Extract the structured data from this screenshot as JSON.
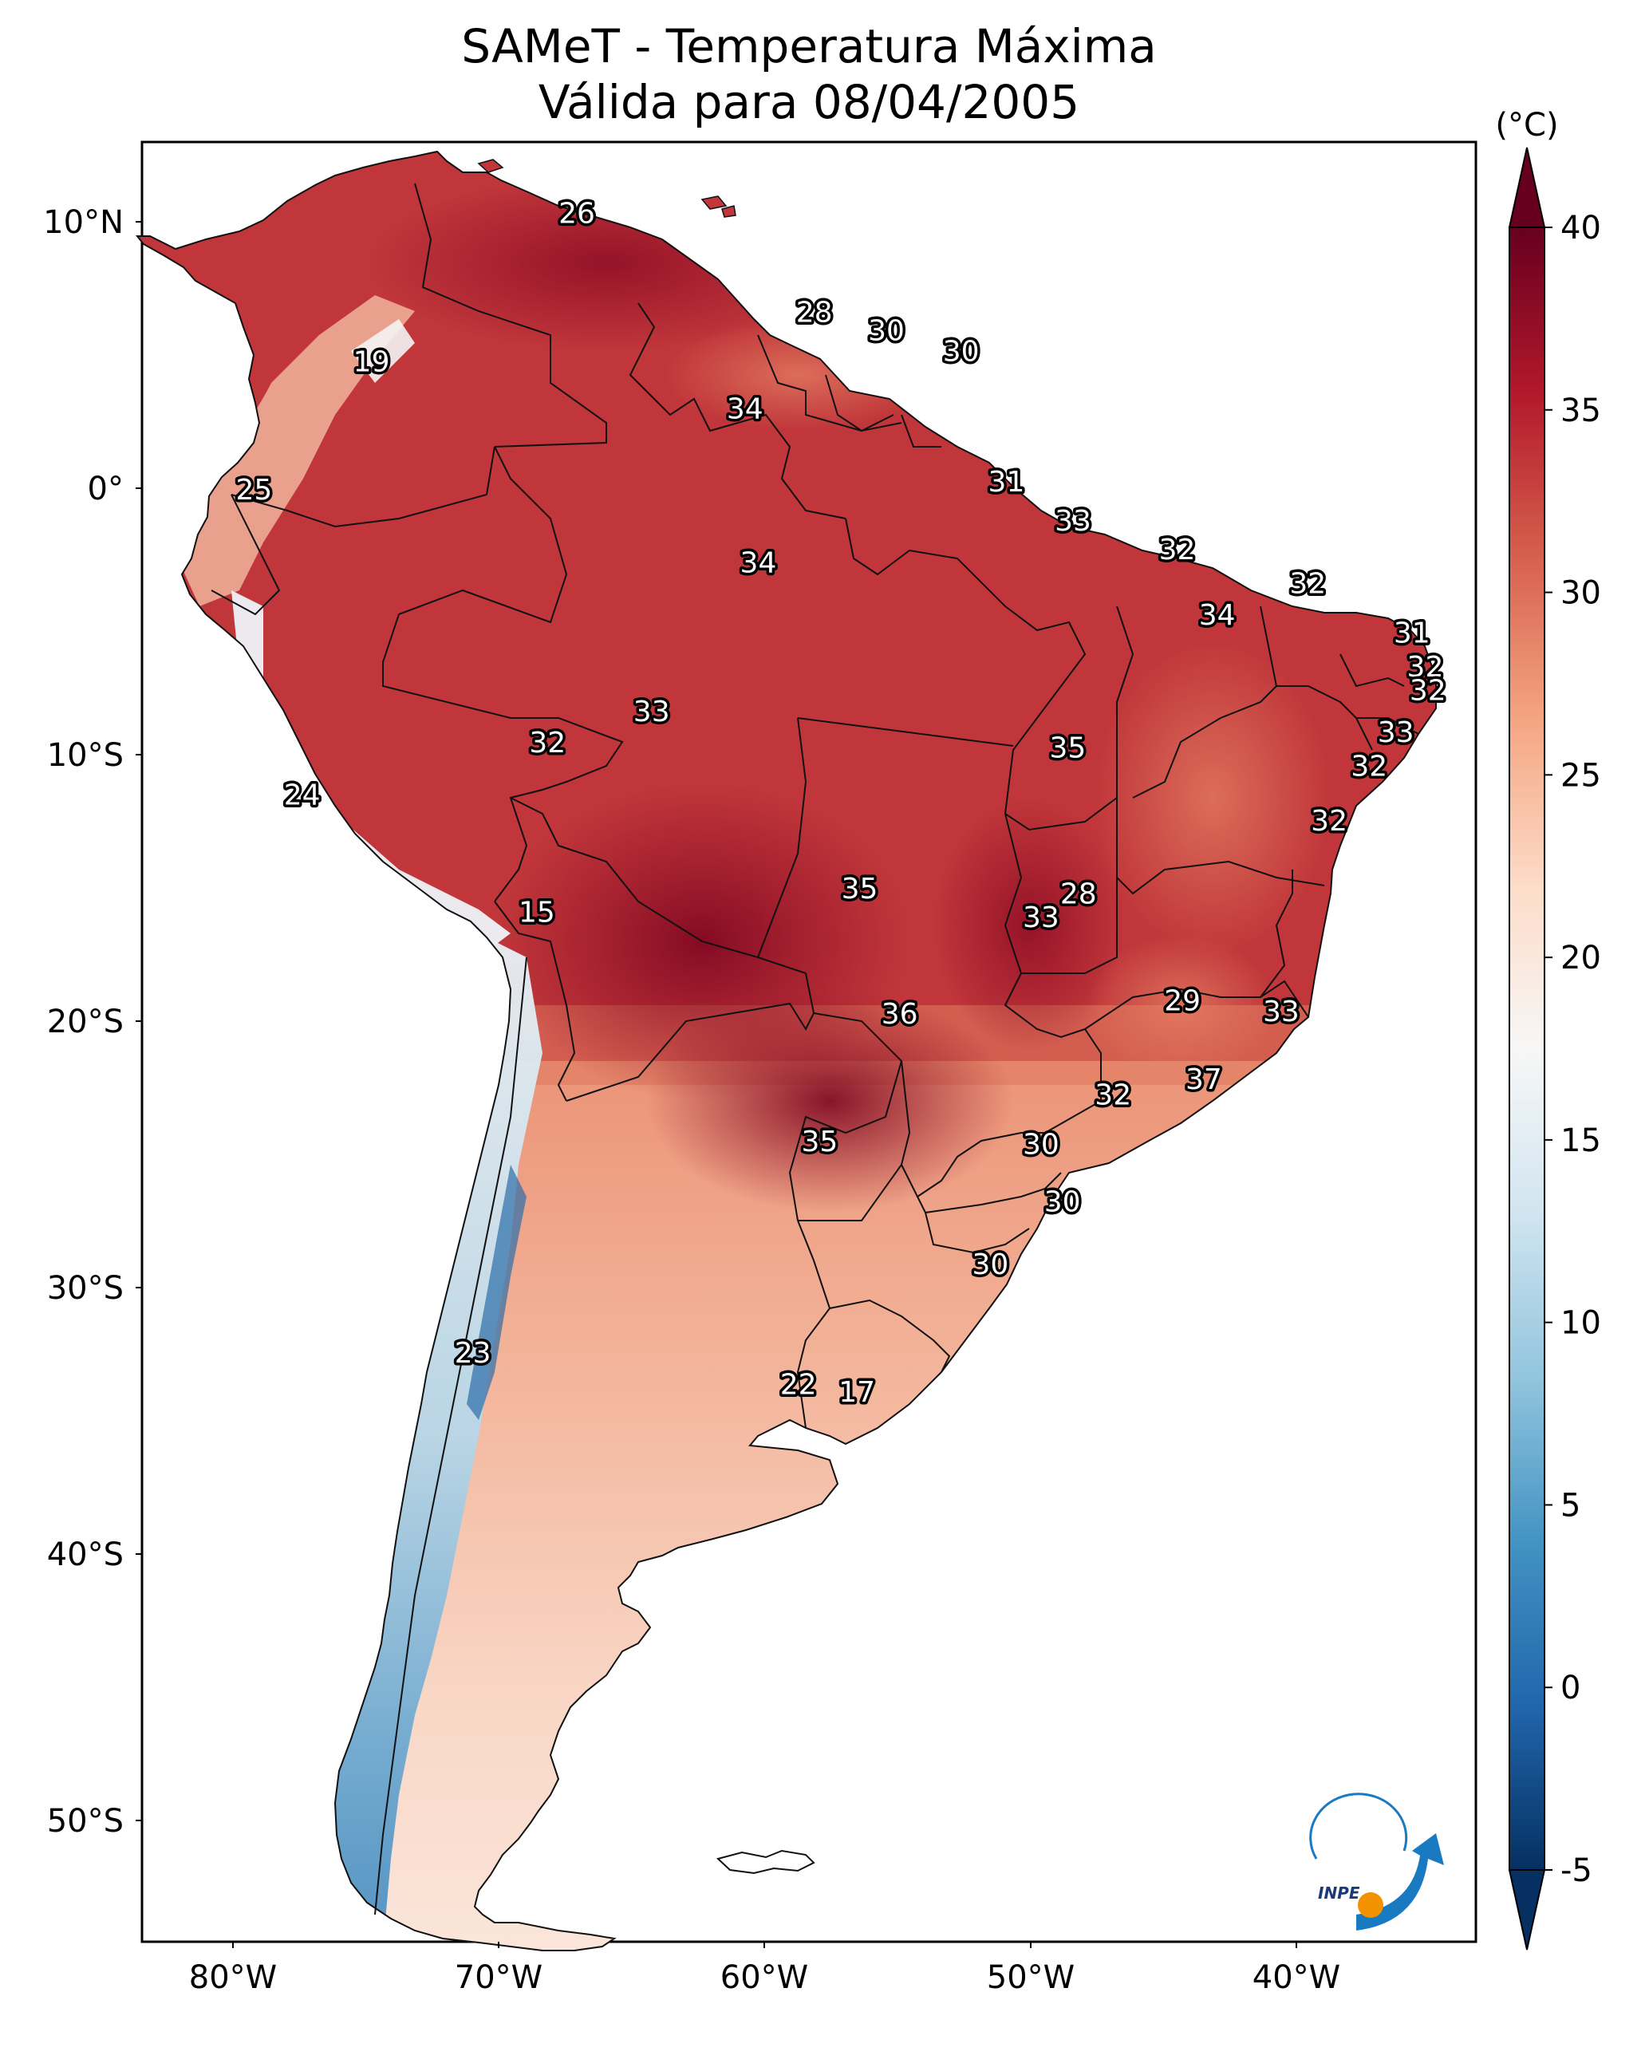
{
  "title": {
    "line1": "SAMeT - Temperatura Máxima",
    "line2": "Válida para 08/04/2005"
  },
  "map": {
    "lat_ticks": [
      "10°N",
      "0°",
      "10°S",
      "20°S",
      "30°S",
      "40°S",
      "50°S"
    ],
    "lon_ticks": [
      "80°W",
      "70°W",
      "60°W",
      "50°W",
      "40°W"
    ],
    "extent": {
      "lon": [
        -83,
        -33
      ],
      "lat": [
        -56,
        13
      ]
    }
  },
  "colorbar": {
    "unit": "(°C)",
    "ticks": [
      "40",
      "35",
      "30",
      "25",
      "20",
      "15",
      "10",
      "5",
      "0",
      "-5"
    ],
    "range": [
      -5,
      40
    ],
    "extend": "both",
    "colors": [
      "#053061",
      "#2166ac",
      "#4393c3",
      "#92c5de",
      "#d1e5f0",
      "#f7f7f7",
      "#fddbc7",
      "#f4a582",
      "#d6604d",
      "#b2182b",
      "#67001f"
    ]
  },
  "logo": {
    "text": "INPE",
    "colors": {
      "blue": "#1a7ac1",
      "orange": "#f39200"
    }
  },
  "chart_data": {
    "type": "map",
    "title": "SAMeT - Temperatura Máxima / Válida para 08/04/2005",
    "variable": "Temperatura Máxima (°C)",
    "stations": [
      {
        "label": "26",
        "lon": -66.7,
        "lat": 10.3
      },
      {
        "label": "28",
        "lon": -57.8,
        "lat": 6.5
      },
      {
        "label": "30",
        "lon": -55.1,
        "lat": 5.8
      },
      {
        "label": "30",
        "lon": -52.3,
        "lat": 5.0
      },
      {
        "label": "19",
        "lon": -74.4,
        "lat": 4.6
      },
      {
        "label": "34",
        "lon": -60.4,
        "lat": 2.8
      },
      {
        "label": "31",
        "lon": -50.6,
        "lat": 0.0
      },
      {
        "label": "25",
        "lon": -78.8,
        "lat": -0.3
      },
      {
        "label": "33",
        "lon": -48.1,
        "lat": -1.5
      },
      {
        "label": "32",
        "lon": -44.2,
        "lat": -2.6
      },
      {
        "label": "34",
        "lon": -59.9,
        "lat": -3.1
      },
      {
        "label": "32",
        "lon": -39.3,
        "lat": -3.9
      },
      {
        "label": "34",
        "lon": -42.7,
        "lat": -5.1
      },
      {
        "label": "31",
        "lon": -35.4,
        "lat": -5.8
      },
      {
        "label": "32",
        "lon": -34.9,
        "lat": -7.1
      },
      {
        "label": "32",
        "lon": -34.8,
        "lat": -8.0
      },
      {
        "label": "33",
        "lon": -36.0,
        "lat": -9.6
      },
      {
        "label": "33",
        "lon": -63.9,
        "lat": -8.8
      },
      {
        "label": "32",
        "lon": -67.8,
        "lat": -10.0
      },
      {
        "label": "35",
        "lon": -48.3,
        "lat": -10.2
      },
      {
        "label": "32",
        "lon": -37.0,
        "lat": -10.9
      },
      {
        "label": "24",
        "lon": -77.0,
        "lat": -12.0
      },
      {
        "label": "32",
        "lon": -38.5,
        "lat": -13.0
      },
      {
        "label": "35",
        "lon": -56.1,
        "lat": -15.6
      },
      {
        "label": "28",
        "lon": -47.9,
        "lat": -15.8
      },
      {
        "label": "15",
        "lon": -68.2,
        "lat": -16.5
      },
      {
        "label": "33",
        "lon": -49.3,
        "lat": -16.7
      },
      {
        "label": "29",
        "lon": -44.0,
        "lat": -19.9
      },
      {
        "label": "33",
        "lon": -40.3,
        "lat": -20.3
      },
      {
        "label": "36",
        "lon": -54.6,
        "lat": -20.4
      },
      {
        "label": "37",
        "lon": -43.2,
        "lat": -22.9
      },
      {
        "label": "32",
        "lon": -46.6,
        "lat": -23.5
      },
      {
        "label": "35",
        "lon": -57.6,
        "lat": -25.3
      },
      {
        "label": "30",
        "lon": -49.3,
        "lat": -25.4
      },
      {
        "label": "30",
        "lon": -48.5,
        "lat": -27.6
      },
      {
        "label": "30",
        "lon": -51.2,
        "lat": -30.0
      },
      {
        "label": "23",
        "lon": -70.6,
        "lat": -33.4
      },
      {
        "label": "22",
        "lon": -58.4,
        "lat": -34.6
      },
      {
        "label": "17",
        "lon": -56.2,
        "lat": -34.9
      }
    ]
  }
}
